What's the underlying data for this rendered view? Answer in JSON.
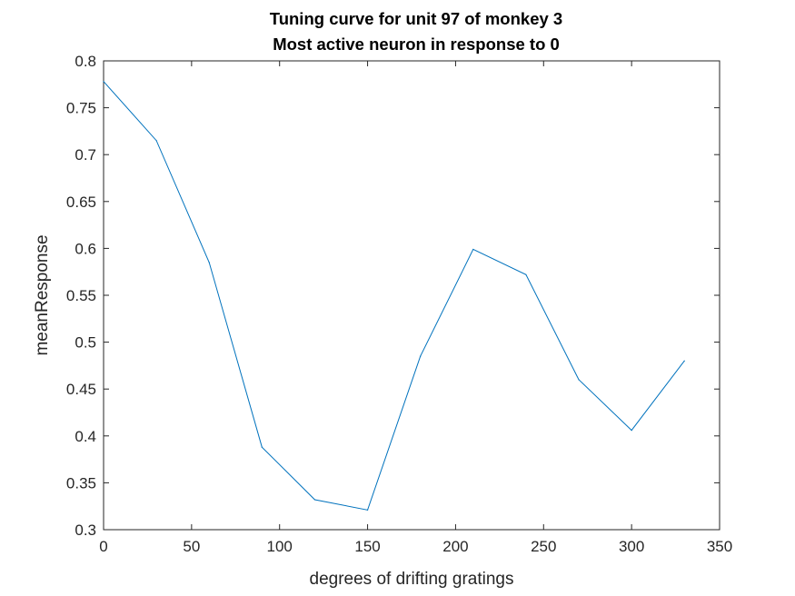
{
  "chart_data": {
    "type": "line",
    "title": "Tuning curve for unit 97 of monkey 3",
    "subtitle": "Most active neuron in response to 0",
    "xlabel": "degrees of drifting gratings",
    "ylabel": "meanResponse",
    "xlim": [
      0,
      350
    ],
    "ylim": [
      0.3,
      0.8
    ],
    "xticks": [
      0,
      50,
      100,
      150,
      200,
      250,
      300,
      350
    ],
    "yticks": [
      0.3,
      0.35,
      0.4,
      0.45,
      0.5,
      0.55,
      0.6,
      0.65,
      0.7,
      0.75,
      0.8
    ],
    "grid": false,
    "line_color": "#0072BD",
    "series": [
      {
        "x": [
          0,
          30,
          60,
          90,
          120,
          150,
          180,
          210,
          240,
          270,
          300,
          330
        ],
        "y": [
          0.778,
          0.715,
          0.585,
          0.388,
          0.332,
          0.321,
          0.485,
          0.599,
          0.572,
          0.46,
          0.406,
          0.48
        ]
      }
    ]
  }
}
